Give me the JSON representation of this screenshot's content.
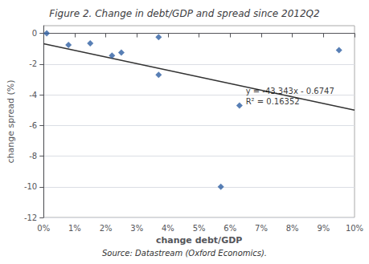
{
  "chart_data": {
    "type": "scatter",
    "title": "Figure 2. Change in debt/GDP and spread since 2012Q2",
    "xlabel": "change debt/GDP",
    "ylabel": "change spread (%)",
    "source": "Source: Datastream (Oxford Economics).",
    "series": [
      {
        "type": "scatter",
        "marker": "diamond",
        "color": "#2E5FA3",
        "x": [
          0.001,
          0.008,
          0.015,
          0.022,
          0.025,
          0.037,
          0.037,
          0.057,
          0.063,
          0.095
        ],
        "values": [
          0.0,
          -0.75,
          -0.65,
          -1.45,
          -1.25,
          -0.25,
          -2.7,
          -10.0,
          -4.7,
          -1.1
        ]
      },
      {
        "type": "line",
        "color": "#333333",
        "x": [
          0,
          0.1
        ],
        "values": [
          -0.6747,
          -5.009
        ]
      }
    ],
    "annotations": [
      {
        "text": "y = -43.343x - 0.6747\nR² = 0.16352",
        "x": 0.065,
        "y": -4.8
      }
    ],
    "xlim": [
      0,
      0.1
    ],
    "xticks": [
      {
        "value": 0,
        "label": "0%"
      },
      {
        "value": 0.01,
        "label": "1%"
      },
      {
        "value": 0.02,
        "label": "2%"
      },
      {
        "value": 0.03,
        "label": "3%"
      },
      {
        "value": 0.04,
        "label": "4%"
      },
      {
        "value": 0.05,
        "label": "5%"
      },
      {
        "value": 0.06,
        "label": "6%"
      },
      {
        "value": 0.07,
        "label": "7%"
      },
      {
        "value": 0.08,
        "label": "8%"
      },
      {
        "value": 0.09,
        "label": "9%"
      },
      {
        "value": 0.1,
        "label": "10%"
      }
    ],
    "ylim": [
      -12,
      0.5
    ],
    "yticks": [
      0,
      -2,
      -4,
      -6,
      -8,
      -10,
      -12
    ],
    "grid": "y"
  }
}
